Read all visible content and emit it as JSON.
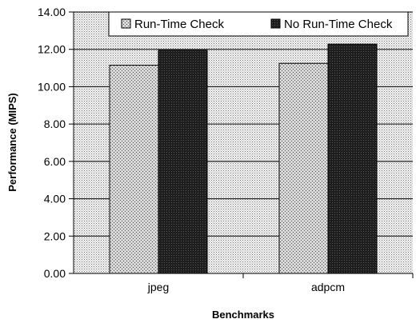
{
  "chart_data": {
    "type": "bar",
    "categories": [
      "jpeg",
      "adpcm"
    ],
    "series": [
      {
        "name": "Run-Time Check",
        "values": [
          11.15,
          11.25
        ],
        "style": "light-stipple"
      },
      {
        "name": "No Run-Time Check",
        "values": [
          11.95,
          12.28
        ],
        "style": "dark"
      }
    ],
    "xlabel": "Benchmarks",
    "ylabel": "Performance (MIPS)",
    "ylim": [
      0,
      14
    ],
    "yticks": [
      0,
      2,
      4,
      6,
      8,
      10,
      12,
      14
    ],
    "ytick_labels": [
      "0.00",
      "2.00",
      "4.00",
      "6.00",
      "8.00",
      "10.00",
      "12.00",
      "14.00"
    ],
    "grid": true,
    "legend_position": "top"
  }
}
